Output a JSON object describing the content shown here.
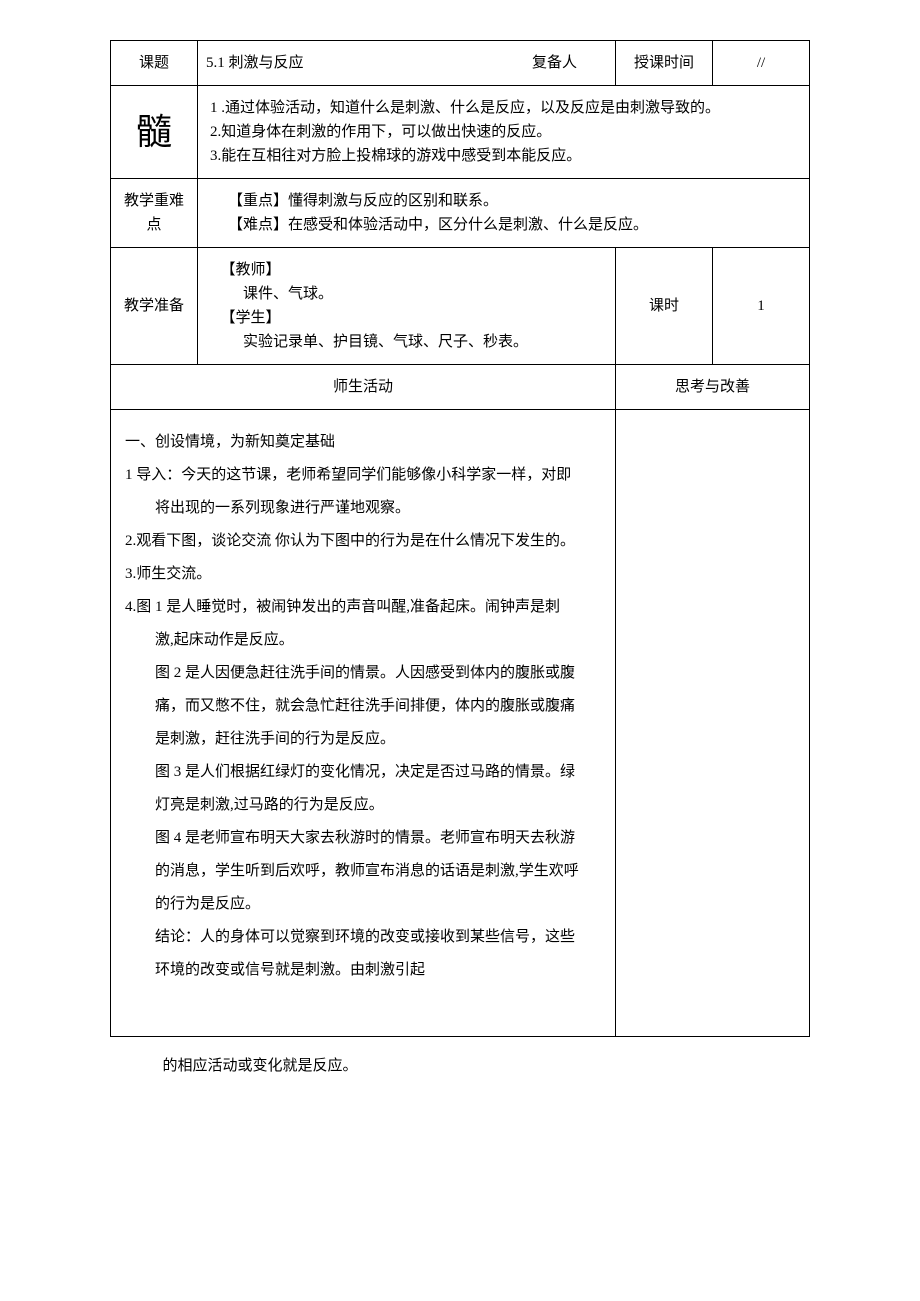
{
  "header": {
    "topic_label": "课题",
    "topic_value": "5.1 刺激与反应",
    "replanner_label": "复备人",
    "time_label": "授课时间",
    "time_value": "//"
  },
  "goal": {
    "label": "髓",
    "lines": [
      "1 .通过体验活动，知道什么是刺激、什么是反应，以及反应是由刺激导致的。",
      "2.知道身体在刺激的作用下，可以做出快速的反应。",
      "3.能在互相往对方脸上投棉球的游戏中感受到本能反应。"
    ]
  },
  "keypoints": {
    "label": "教学重难点",
    "zh_label": "【重点】",
    "zh_text": "懂得刺激与反应的区别和联系。",
    "nd_label": "【难点】",
    "nd_text": "在感受和体验活动中，区分什么是刺激、什么是反应。"
  },
  "prep": {
    "label": "教学准备",
    "teacher_hdr": "【教师】",
    "teacher_text": "课件、气球。",
    "student_hdr": "【学生】",
    "student_text": "实验记录单、护目镜、气球、尺子、秒表。",
    "period_label": "课时",
    "period_value": "1"
  },
  "activity": {
    "left_header": "师生活动",
    "right_header": "思考与改善",
    "section_title": "一、创设情境，为新知奠定基础",
    "p1a": "1 导入：今天的这节课，老师希望同学们能够像小科学家一样，对即",
    "p1b": "将出现的一系列现象进行严谨地观察。",
    "p2": "2.观看下图，谈论交流 你认为下图中的行为是在什么情况下发生的。",
    "p3": "3.师生交流。",
    "p4a": "4.图 1 是人睡觉时，被闹钟发出的声音叫醒,准备起床。闹钟声是刺",
    "p4b": "激,起床动作是反应。",
    "p5a": "图 2 是人因便急赶往洗手间的情景。人因感受到体内的腹胀或腹",
    "p5b": "痛，而又憋不住，就会急忙赶往洗手间排便，体内的腹胀或腹痛",
    "p5c": "是刺激，赶往洗手间的行为是反应。",
    "p6a": "图 3 是人们根据红绿灯的变化情况，决定是否过马路的情景。绿",
    "p6b": "灯亮是刺激,过马路的行为是反应。",
    "p7a": "图 4 是老师宣布明天大家去秋游时的情景。老师宣布明天去秋游",
    "p7b": "的消息，学生听到后欢呼，教师宣布消息的话语是刺激,学生欢呼",
    "p7c": "的行为是反应。",
    "p8a": "结论：人的身体可以觉察到环境的改变或接收到某些信号，这些",
    "p8b": "环境的改变或信号就是刺激。由刺激引起"
  },
  "footer": "的相应活动或变化就是反应。"
}
